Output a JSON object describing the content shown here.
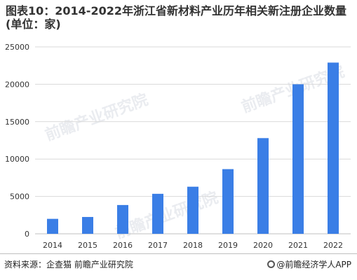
{
  "title": "图表10：2014-2022年浙江省新材料产业历年相关新注册企业数量(单位：家)",
  "source": "资料来源：企查猫 前瞻产业研究院",
  "credit": "@前瞻经济学人APP",
  "watermark": "前瞻产业研究院",
  "colors": {
    "bar": "#3a7ee6",
    "grid": "#d9d9d9",
    "axis": "#bfbfbf"
  },
  "chart_data": {
    "type": "bar",
    "categories": [
      "2014",
      "2015",
      "2016",
      "2017",
      "2018",
      "2019",
      "2020",
      "2021",
      "2022"
    ],
    "values": [
      2000,
      2250,
      3850,
      5350,
      6300,
      8650,
      12800,
      20000,
      22900
    ],
    "ylim": [
      0,
      25000
    ],
    "yticks": [
      0,
      5000,
      10000,
      15000,
      20000,
      25000
    ],
    "grid": true,
    "legend": "none"
  }
}
